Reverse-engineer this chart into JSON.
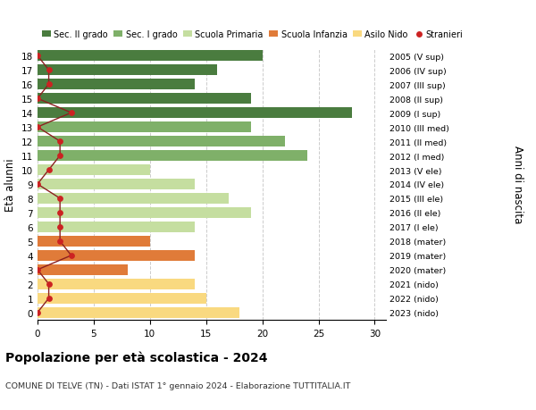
{
  "ages": [
    18,
    17,
    16,
    15,
    14,
    13,
    12,
    11,
    10,
    9,
    8,
    7,
    6,
    5,
    4,
    3,
    2,
    1,
    0
  ],
  "labels_right": [
    "2005 (V sup)",
    "2006 (IV sup)",
    "2007 (III sup)",
    "2008 (II sup)",
    "2009 (I sup)",
    "2010 (III med)",
    "2011 (II med)",
    "2012 (I med)",
    "2013 (V ele)",
    "2014 (IV ele)",
    "2015 (III ele)",
    "2016 (II ele)",
    "2017 (I ele)",
    "2018 (mater)",
    "2019 (mater)",
    "2020 (mater)",
    "2021 (nido)",
    "2022 (nido)",
    "2023 (nido)"
  ],
  "bar_values": [
    20,
    16,
    14,
    19,
    28,
    19,
    22,
    24,
    10,
    14,
    17,
    19,
    14,
    10,
    14,
    8,
    14,
    15,
    18
  ],
  "bar_colors": [
    "#4a7c3f",
    "#4a7c3f",
    "#4a7c3f",
    "#4a7c3f",
    "#4a7c3f",
    "#7fb069",
    "#7fb069",
    "#7fb069",
    "#c5dea0",
    "#c5dea0",
    "#c5dea0",
    "#c5dea0",
    "#c5dea0",
    "#e07b39",
    "#e07b39",
    "#e07b39",
    "#f9d980",
    "#f9d980",
    "#f9d980"
  ],
  "stranieri_values": [
    0,
    1,
    1,
    0,
    3,
    0,
    2,
    2,
    1,
    0,
    2,
    2,
    2,
    2,
    3,
    0,
    1,
    1,
    0
  ],
  "xlim": [
    0,
    31
  ],
  "xticks": [
    0,
    5,
    10,
    15,
    20,
    25,
    30
  ],
  "ylabel": "Età alunni",
  "ylabel_right": "Anni di nascita",
  "title": "Popolazione per età scolastica - 2024",
  "subtitle": "COMUNE DI TELVE (TN) - Dati ISTAT 1° gennaio 2024 - Elaborazione TUTTITALIA.IT",
  "legend_labels": [
    "Sec. II grado",
    "Sec. I grado",
    "Scuola Primaria",
    "Scuola Infanzia",
    "Asilo Nido",
    "Stranieri"
  ],
  "legend_colors": [
    "#4a7c3f",
    "#7fb069",
    "#c5dea0",
    "#e07b39",
    "#f9d980",
    "#cc2222"
  ],
  "stranieri_color": "#cc2222",
  "line_color": "#8b2020",
  "bar_height": 0.75,
  "background_color": "#ffffff",
  "grid_color": "#cccccc"
}
